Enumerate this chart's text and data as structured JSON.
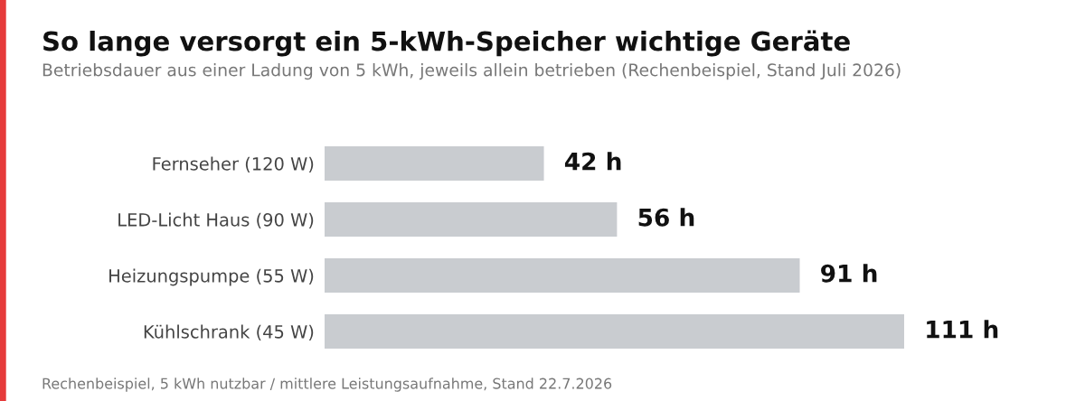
{
  "chart_data": {
    "type": "bar",
    "orientation": "horizontal",
    "title": "So lange versorgt ein 5-kWh-Speicher wichtige Geräte",
    "subtitle": "Betriebsdauer aus einer Ladung von 5 kWh, jeweils allein betrieben (Rechenbeispiel, Stand Juli 2026)",
    "categories": [
      "Fernseher (120 W)",
      "LED-Licht Haus (90 W)",
      "Heizungspumpe (55 W)",
      "Kühlschrank (45 W)"
    ],
    "values": [
      42,
      56,
      91,
      111
    ],
    "value_labels": [
      "42 h",
      "56 h",
      "91 h",
      "111 h"
    ],
    "color": "#c9ccd0",
    "grid": false,
    "legend": false,
    "annotations": [
      "Rechenbeispiel, 5 kWh nutzbar / mittlere Leistungsaufnahme, Stand 22.7.2026"
    ]
  }
}
